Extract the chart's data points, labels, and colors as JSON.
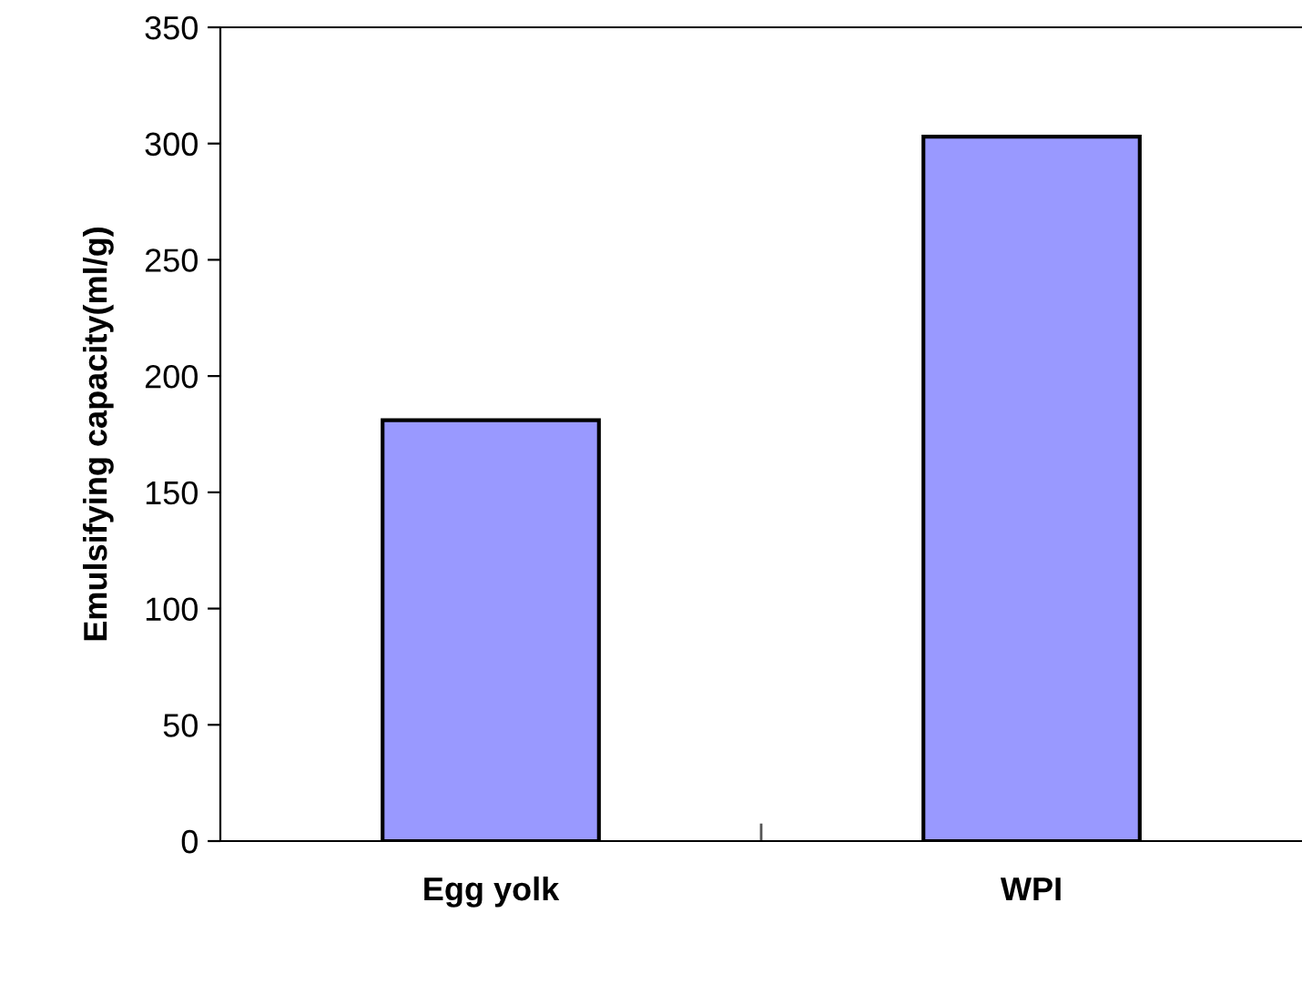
{
  "chart_data": {
    "type": "bar",
    "ylabel": "Emulsifying capacity(ml/g)",
    "categories": [
      "Egg yolk",
      "WPI"
    ],
    "values": [
      181,
      303
    ],
    "color": "#9999ff",
    "ylim": [
      0,
      350
    ],
    "yticks": [
      0,
      50,
      100,
      150,
      200,
      250,
      300,
      350
    ],
    "grid": false
  }
}
